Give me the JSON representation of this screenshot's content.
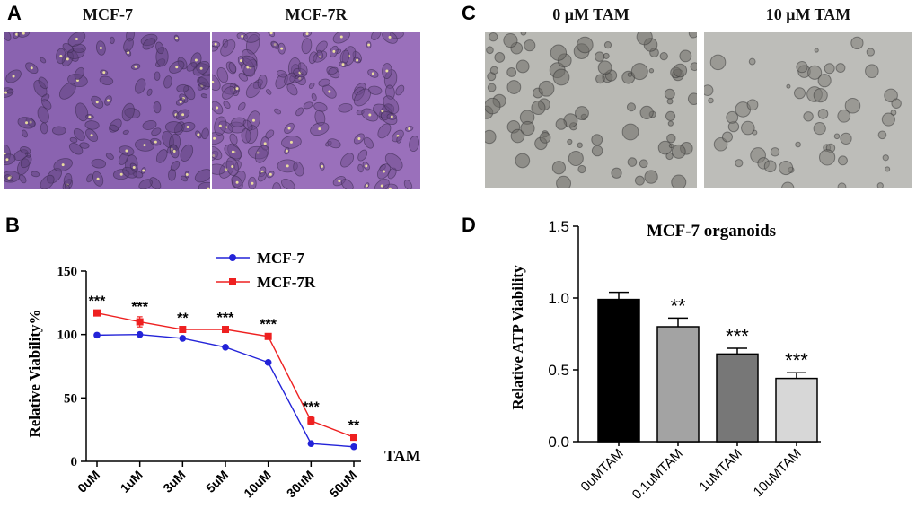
{
  "panels": {
    "A": {
      "letter": "A",
      "images": [
        {
          "title": "MCF-7",
          "tint": "#8a63b0"
        },
        {
          "title": "MCF-7R",
          "tint": "#9a70bb"
        }
      ]
    },
    "C": {
      "letter": "C",
      "images": [
        {
          "title": "0 μM TAM",
          "tint": "#b9b9b4"
        },
        {
          "title": "10 μM TAM",
          "tint": "#bdbdb9"
        }
      ]
    },
    "B": {
      "letter": "B"
    },
    "D": {
      "letter": "D"
    }
  },
  "chart_data": [
    {
      "type": "line",
      "panel": "B",
      "title": "",
      "xlabel": "TAM",
      "ylabel": "Relative  Viability%",
      "categories": [
        "0uM",
        "1uM",
        "3uM",
        "5uM",
        "10uM",
        "30uM",
        "50uM"
      ],
      "ylim": [
        0,
        150
      ],
      "yticks": [
        0,
        50,
        100,
        150
      ],
      "legend_position": "top-center",
      "series": [
        {
          "name": "MCF-7",
          "color": "#2323d8",
          "marker": "circle",
          "values": [
            99.5,
            100,
            97,
            90,
            78,
            14,
            11.5
          ],
          "errors": [
            0,
            0,
            1,
            0,
            0,
            1,
            0.5
          ]
        },
        {
          "name": "MCF-7R",
          "color": "#ee2020",
          "marker": "square",
          "values": [
            117,
            110,
            104,
            104,
            98.5,
            32,
            19
          ],
          "errors": [
            1.5,
            4,
            1,
            1.5,
            1.5,
            3,
            1.5
          ]
        }
      ],
      "annotations": [
        "***",
        "***",
        "**",
        "***",
        "***",
        "***",
        "**"
      ]
    },
    {
      "type": "bar",
      "panel": "D",
      "title": "MCF-7 organoids",
      "xlabel": "",
      "ylabel": "Relative ATP Viability",
      "categories": [
        "0uMTAM",
        "0.1uMTAM",
        "1uMTAM",
        "10uMTAM"
      ],
      "values": [
        0.99,
        0.8,
        0.61,
        0.44
      ],
      "errors": [
        0.05,
        0.06,
        0.04,
        0.04
      ],
      "colors": [
        "#000000",
        "#a3a3a3",
        "#777777",
        "#d7d7d7"
      ],
      "ylim": [
        0,
        1.5
      ],
      "yticks": [
        "0.0",
        "0.5",
        "1.0",
        "1.5"
      ],
      "annotations": [
        "",
        "**",
        "***",
        "***"
      ]
    }
  ]
}
